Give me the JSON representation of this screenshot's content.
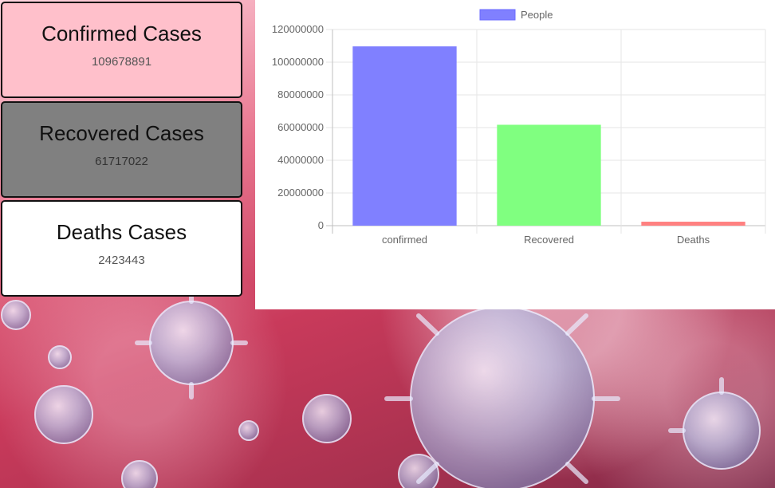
{
  "cards": {
    "confirmed": {
      "title": "Confirmed Cases",
      "value": "109678891",
      "color": "#ffc0cb"
    },
    "recovered": {
      "title": "Recovered Cases",
      "value": "61717022",
      "color": "#808080"
    },
    "deaths": {
      "title": "Deaths Cases",
      "value": "2423443",
      "color": "#ffffff"
    }
  },
  "chart_data": {
    "type": "bar",
    "categories": [
      "confirmed",
      "Recovered",
      "Deaths"
    ],
    "series": [
      {
        "name": "People",
        "values": [
          109678891,
          61717022,
          2423443
        ]
      }
    ],
    "bar_colors": [
      "#8080ff",
      "#80ff80",
      "#ff8080"
    ],
    "legend_color": "#8080ff",
    "legend_position": "top-center",
    "ylim": [
      0,
      120000000
    ],
    "y_ticks": [
      "120000000",
      "100000000",
      "80000000",
      "60000000",
      "40000000",
      "20000000",
      "0"
    ],
    "grid": true
  }
}
